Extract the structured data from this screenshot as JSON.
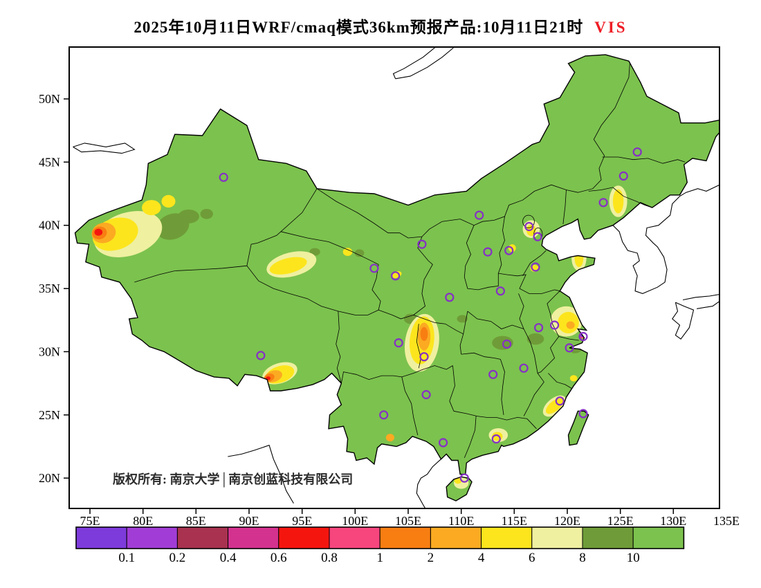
{
  "title": {
    "main": "2025年10月11日WRF/cmaq模式36km预报产品:10月11日21时",
    "variable": "VIS",
    "variable_color": "#ee1c25"
  },
  "copyright": "版权所有: 南京大学│南京创蓝科技有限公司",
  "axes": {
    "lat_labels": [
      "50N",
      "45N",
      "40N",
      "35N",
      "30N",
      "25N",
      "20N"
    ],
    "lat_values": [
      50,
      45,
      40,
      35,
      30,
      25,
      20
    ],
    "lon_labels": [
      "75E",
      "80E",
      "85E",
      "90E",
      "95E",
      "100E",
      "105E",
      "110E",
      "115E",
      "120E",
      "125E",
      "130E",
      "135E"
    ],
    "lon_values": [
      75,
      80,
      85,
      90,
      95,
      100,
      105,
      110,
      115,
      120,
      125,
      130,
      135
    ]
  },
  "colorbar": {
    "labels": [
      "0.1",
      "0.2",
      "0.4",
      "0.6",
      "0.8",
      "1",
      "2",
      "4",
      "6",
      "8",
      "10"
    ],
    "colors": [
      "#7d3bdb",
      "#a13dd6",
      "#a83250",
      "#d4328f",
      "#f5150f",
      "#f7457e",
      "#f87e12",
      "#fbaa22",
      "#fce51d",
      "#eff0a0",
      "#6f9c38",
      "#7cc24e"
    ]
  },
  "map": {
    "type": "filled-contour-map",
    "base_bin": 11,
    "marker_color": "#8630c6",
    "markers": [
      [
        87.6,
        43.8
      ],
      [
        126.6,
        45.8
      ],
      [
        125.3,
        43.9
      ],
      [
        123.4,
        41.8
      ],
      [
        111.7,
        40.8
      ],
      [
        116.4,
        39.9
      ],
      [
        117.2,
        39.1
      ],
      [
        114.5,
        38.0
      ],
      [
        112.5,
        37.9
      ],
      [
        117.0,
        36.7
      ],
      [
        106.3,
        38.5
      ],
      [
        101.8,
        36.6
      ],
      [
        103.8,
        36.0
      ],
      [
        113.7,
        34.8
      ],
      [
        108.9,
        34.3
      ],
      [
        104.1,
        30.7
      ],
      [
        106.5,
        29.6
      ],
      [
        91.1,
        29.7
      ],
      [
        114.3,
        30.6
      ],
      [
        117.3,
        31.9
      ],
      [
        118.8,
        32.1
      ],
      [
        121.5,
        31.2
      ],
      [
        120.2,
        30.3
      ],
      [
        115.9,
        28.7
      ],
      [
        113.0,
        28.2
      ],
      [
        106.7,
        26.6
      ],
      [
        102.7,
        25.0
      ],
      [
        119.3,
        26.1
      ],
      [
        121.5,
        25.1
      ],
      [
        113.3,
        23.1
      ],
      [
        108.3,
        22.8
      ],
      [
        110.3,
        20.0
      ]
    ],
    "patches": [
      [
        82.8,
        39.9,
        1.6,
        1.0,
        -20,
        10
      ],
      [
        84.3,
        40.7,
        1.0,
        0.55,
        0,
        10
      ],
      [
        86.0,
        40.9,
        0.6,
        0.4,
        0,
        10
      ],
      [
        96.2,
        37.9,
        0.5,
        0.3,
        0,
        10
      ],
      [
        100.4,
        37.8,
        0.45,
        0.3,
        0,
        10
      ],
      [
        105.2,
        32.6,
        0.6,
        0.4,
        0,
        10
      ],
      [
        110.1,
        32.6,
        0.5,
        0.3,
        0,
        10
      ],
      [
        113.9,
        30.7,
        1.0,
        0.55,
        0,
        10
      ],
      [
        117.0,
        31.0,
        0.8,
        0.45,
        0,
        10
      ],
      [
        120.9,
        30.2,
        0.6,
        0.3,
        -20,
        10
      ],
      [
        78.6,
        39.3,
        3.3,
        1.7,
        -18,
        9
      ],
      [
        94.0,
        36.9,
        2.4,
        0.95,
        -14,
        9
      ],
      [
        106.3,
        30.7,
        1.6,
        2.3,
        8,
        9
      ],
      [
        92.9,
        28.3,
        1.7,
        0.8,
        -18,
        9
      ],
      [
        124.8,
        41.9,
        0.85,
        1.25,
        0,
        9
      ],
      [
        121.1,
        37.4,
        0.7,
        1.0,
        0,
        9
      ],
      [
        116.6,
        39.7,
        0.8,
        0.7,
        0,
        9
      ],
      [
        119.9,
        32.4,
        1.5,
        1.2,
        0,
        9
      ],
      [
        118.8,
        25.7,
        1.3,
        0.6,
        -40,
        9
      ],
      [
        113.5,
        23.4,
        0.9,
        0.55,
        0,
        9
      ],
      [
        110.0,
        19.6,
        0.7,
        0.45,
        0,
        9
      ],
      [
        77.4,
        39.3,
        2.2,
        1.25,
        -18,
        8
      ],
      [
        80.8,
        41.4,
        0.9,
        0.6,
        0,
        8
      ],
      [
        82.4,
        41.9,
        0.65,
        0.5,
        0,
        8
      ],
      [
        93.7,
        36.8,
        1.8,
        0.6,
        -14,
        8
      ],
      [
        99.3,
        37.9,
        0.45,
        0.32,
        0,
        8
      ],
      [
        103.9,
        36.1,
        0.5,
        0.25,
        -20,
        8
      ],
      [
        106.3,
        30.9,
        1.15,
        1.9,
        6,
        8
      ],
      [
        92.9,
        28.2,
        1.4,
        0.65,
        -18,
        8
      ],
      [
        124.8,
        41.9,
        0.5,
        0.95,
        0,
        8
      ],
      [
        121.1,
        37.4,
        0.42,
        0.7,
        0,
        8
      ],
      [
        116.6,
        39.6,
        0.45,
        0.45,
        0,
        8
      ],
      [
        114.8,
        38.2,
        0.35,
        0.3,
        0,
        8
      ],
      [
        116.9,
        36.6,
        0.4,
        0.28,
        0,
        8
      ],
      [
        120.1,
        32.3,
        1.0,
        0.85,
        0,
        8
      ],
      [
        118.8,
        25.7,
        1.0,
        0.4,
        -40,
        8
      ],
      [
        120.6,
        27.9,
        0.35,
        0.25,
        0,
        8
      ],
      [
        113.4,
        23.3,
        0.5,
        0.35,
        0,
        8
      ],
      [
        109.7,
        19.8,
        0.35,
        0.25,
        0,
        8
      ],
      [
        76.3,
        39.4,
        1.15,
        0.8,
        -15,
        7
      ],
      [
        106.5,
        31.2,
        0.6,
        1.1,
        0,
        7
      ],
      [
        92.3,
        28.05,
        0.85,
        0.45,
        -18,
        7
      ],
      [
        120.3,
        32.1,
        0.4,
        0.3,
        0,
        7
      ],
      [
        103.3,
        23.2,
        0.4,
        0.3,
        0,
        7
      ],
      [
        75.9,
        39.4,
        0.7,
        0.5,
        -15,
        6
      ],
      [
        106.5,
        31.4,
        0.35,
        0.55,
        0,
        6
      ],
      [
        91.9,
        27.95,
        0.5,
        0.3,
        -18,
        6
      ],
      [
        121.4,
        31.3,
        0.3,
        0.25,
        0,
        5
      ],
      [
        75.8,
        39.45,
        0.38,
        0.28,
        0,
        4
      ],
      [
        91.8,
        27.9,
        0.22,
        0.15,
        0,
        4
      ],
      [
        121.4,
        31.3,
        0.17,
        0.14,
        0,
        0
      ]
    ]
  }
}
